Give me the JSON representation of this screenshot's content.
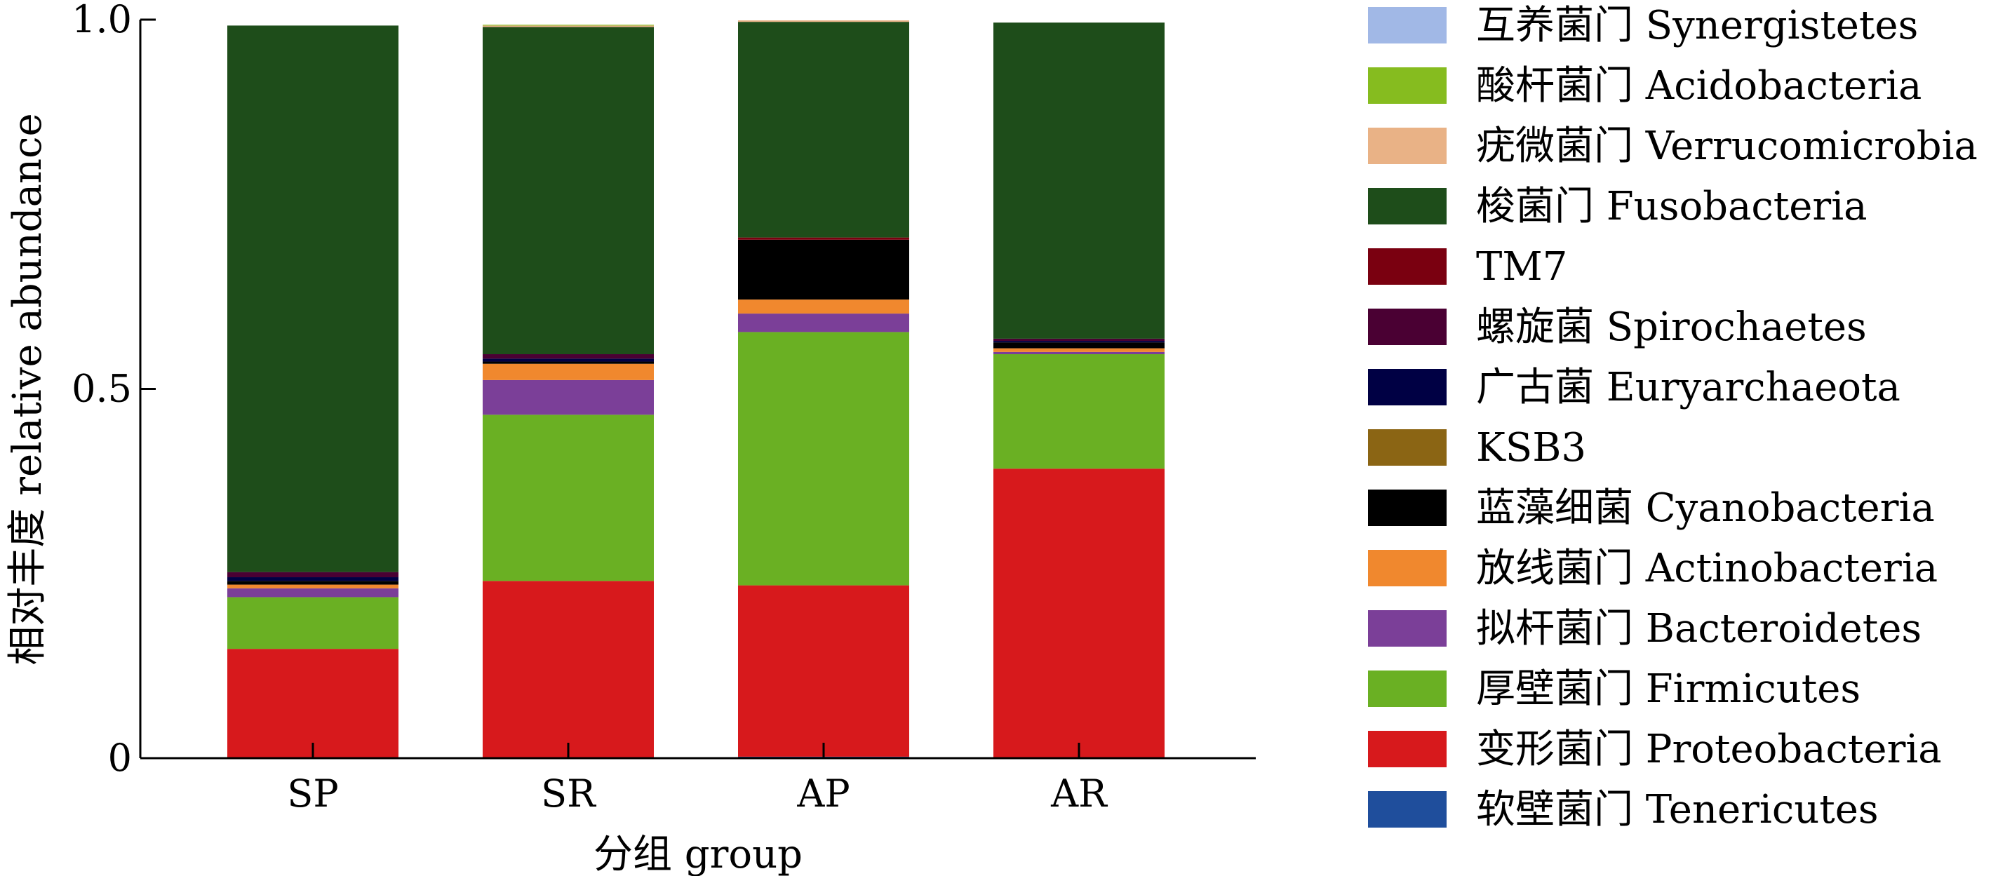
{
  "chart_data": {
    "type": "stacked-bar",
    "xlabel": "分组 group",
    "ylabel": "相对丰度 relative abundance",
    "ylim": [
      0,
      1.0
    ],
    "yticks": [
      {
        "value": 0,
        "label": "0"
      },
      {
        "value": 0.5,
        "label": "0.5"
      },
      {
        "value": 1.0,
        "label": "1.0"
      }
    ],
    "categories": [
      "SP",
      "SR",
      "AP",
      "AR"
    ],
    "legend_position": "right",
    "series": [
      {
        "name": "软壁菌门 Tenericutes",
        "color": "#1f4e9c",
        "values": [
          0.0,
          0.0,
          0.002,
          0.0
        ]
      },
      {
        "name": "变形菌门 Proteobacteria",
        "color": "#d7191c",
        "values": [
          0.148,
          0.24,
          0.232,
          0.392
        ]
      },
      {
        "name": "厚壁菌门 Firmicutes",
        "color": "#6ab023",
        "values": [
          0.07,
          0.225,
          0.343,
          0.155
        ]
      },
      {
        "name": "拟杆菌门 Bacteroidetes",
        "color": "#7b3f98",
        "values": [
          0.012,
          0.047,
          0.025,
          0.003
        ]
      },
      {
        "name": "放线菌门 Actinobacteria",
        "color": "#f0882e",
        "values": [
          0.005,
          0.022,
          0.019,
          0.005
        ]
      },
      {
        "name": "蓝藻细菌 Cyanobacteria",
        "color": "#000000",
        "values": [
          0.005,
          0.003,
          0.081,
          0.008
        ]
      },
      {
        "name": "KSB3",
        "color": "#8b6514",
        "values": [
          0.0,
          0.0,
          0.0,
          0.0
        ]
      },
      {
        "name": "广古菌 Euryarchaeota",
        "color": "#000044",
        "values": [
          0.005,
          0.004,
          0.0,
          0.002
        ]
      },
      {
        "name": "螺旋菌 Spirochaetes",
        "color": "#4a0033",
        "values": [
          0.007,
          0.006,
          0.0,
          0.003
        ]
      },
      {
        "name": "TM7",
        "color": "#7a0010",
        "values": [
          0.0,
          0.0,
          0.003,
          0.0
        ]
      },
      {
        "name": "梭菌门 Fusobacteria",
        "color": "#1e4d1a",
        "values": [
          0.74,
          0.443,
          0.292,
          0.428
        ]
      },
      {
        "name": "疣微菌门 Verrucomicrobia",
        "color": "#e9b286",
        "values": [
          0.0,
          0.002,
          0.002,
          0.0
        ]
      },
      {
        "name": "酸杆菌门 Acidobacteria",
        "color": "#86bc1f",
        "values": [
          0.0,
          0.001,
          0.0,
          0.0
        ]
      },
      {
        "name": "互养菌门 Synergistetes",
        "color": "#a1b8e6",
        "values": [
          0.0,
          0.0,
          0.0,
          0.0
        ]
      }
    ],
    "legend_order": [
      "互养菌门 Synergistetes",
      "酸杆菌门 Acidobacteria",
      "疣微菌门 Verrucomicrobia",
      "梭菌门 Fusobacteria",
      "TM7",
      "螺旋菌 Spirochaetes",
      "广古菌 Euryarchaeota",
      "KSB3",
      "蓝藻细菌 Cyanobacteria",
      "放线菌门 Actinobacteria",
      "拟杆菌门 Bacteroidetes",
      "厚壁菌门 Firmicutes",
      "变形菌门 Proteobacteria",
      "软壁菌门 Tenericutes"
    ]
  }
}
